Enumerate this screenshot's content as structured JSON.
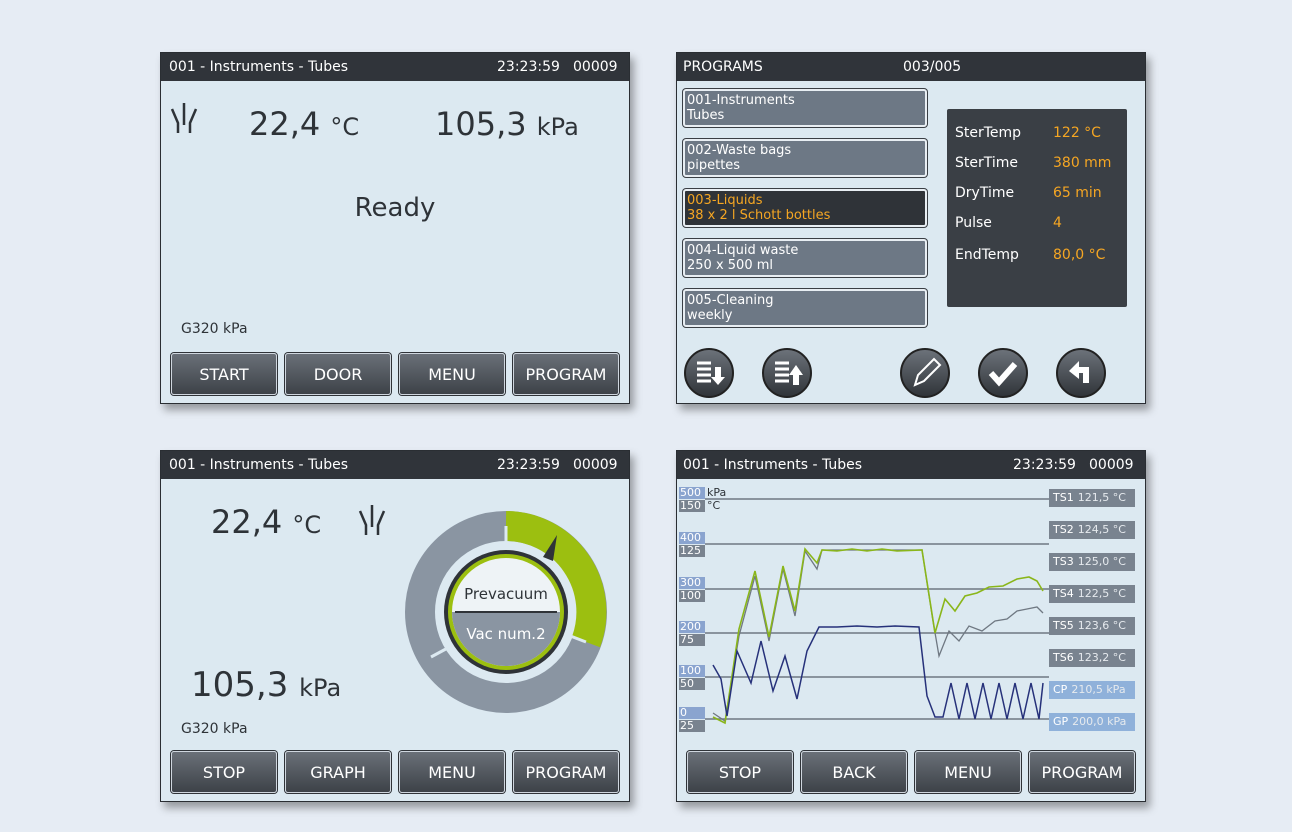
{
  "status_screen": {
    "header": {
      "title": "001 - Instruments - Tubes",
      "time": "23:23:59",
      "counter": "00009"
    },
    "temperature": "22,4",
    "temperature_unit": "°C",
    "pressure": "105,3",
    "pressure_unit": "kPa",
    "status": "Ready",
    "sensor": "G320 kPa",
    "buttons": [
      "START",
      "DOOR",
      "MENU",
      "PROGRAM"
    ]
  },
  "programs_screen": {
    "header": {
      "title": "PROGRAMS",
      "page": "003/005"
    },
    "programs": [
      {
        "line1": "001-Instruments",
        "line2": "Tubes"
      },
      {
        "line1": "002-Waste bags",
        "line2": "pipettes"
      },
      {
        "line1": "003-Liquids",
        "line2": "38 x 2 l Schott bottles"
      },
      {
        "line1": "004-Liquid waste",
        "line2": "250 x 500 ml"
      },
      {
        "line1": "005-Cleaning",
        "line2": "weekly"
      }
    ],
    "parameters": [
      {
        "name": "SterTemp",
        "value": "122 °C"
      },
      {
        "name": "SterTime",
        "value": "380 mm"
      },
      {
        "name": "DryTime",
        "value": "65 min"
      },
      {
        "name": "Pulse",
        "value": "4"
      },
      {
        "name": "EndTemp",
        "value": "80,0 °C"
      }
    ]
  },
  "vacuum_screen": {
    "header": {
      "title": "001 - Instruments - Tubes",
      "time": "23:23:59",
      "counter": "00009"
    },
    "temperature": "22,4",
    "temperature_unit": "°C",
    "pressure": "105,3",
    "pressure_unit": "kPa",
    "phase": "Prevacuum",
    "step": "Vac num.2",
    "sensor": "G320 kPa",
    "buttons": [
      "STOP",
      "GRAPH",
      "MENU",
      "PROGRAM"
    ]
  },
  "graph_screen": {
    "header": {
      "title": "001 - Instruments - Tubes",
      "time": "23:23:59",
      "counter": "00009"
    },
    "pressure_unit": "kPa",
    "temperature_unit": "°C",
    "pressure_axis": [
      "500",
      "400",
      "300",
      "200",
      "100",
      "0"
    ],
    "temperature_axis": [
      "150",
      "125",
      "100",
      "75",
      "50",
      "25"
    ],
    "readings": [
      {
        "name": "TS1",
        "value": "121,5 °C"
      },
      {
        "name": "TS2",
        "value": "124,5 °C"
      },
      {
        "name": "TS3",
        "value": "125,0 °C"
      },
      {
        "name": "TS4",
        "value": "122,5 °C"
      },
      {
        "name": "TS5",
        "value": "123,6 °C"
      },
      {
        "name": "TS6",
        "value": "123,2 °C"
      },
      {
        "name": "CP",
        "value": "210,5 kPa"
      },
      {
        "name": "GP",
        "value": "200,0 kPa"
      }
    ],
    "buttons": [
      "STOP",
      "BACK",
      "MENU",
      "PROGRAM"
    ]
  }
}
